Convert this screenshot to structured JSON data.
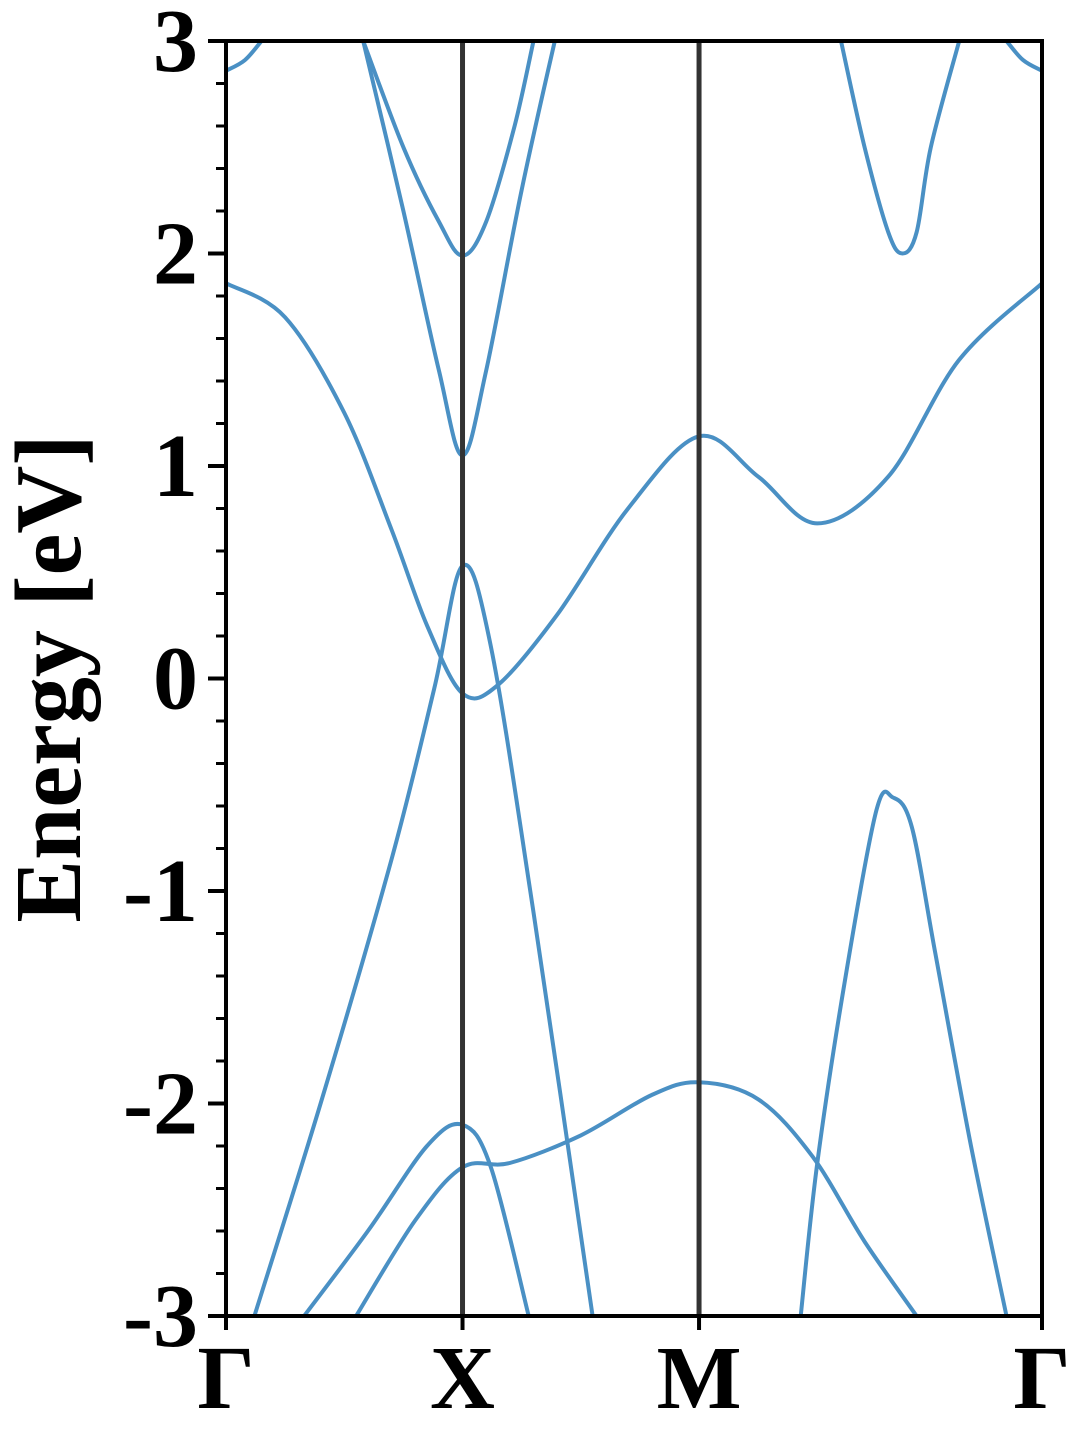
{
  "chart_data": {
    "type": "line",
    "title": "",
    "xlabel": "",
    "ylabel": "Energy [eV]",
    "ylim": [
      -3,
      3
    ],
    "xlim": [
      0,
      3.45
    ],
    "high_symmetry_points": [
      {
        "label": "Γ",
        "k": 0
      },
      {
        "label": "X",
        "k": 1
      },
      {
        "label": "M",
        "k": 2
      },
      {
        "label": "Γ",
        "k": 3.45
      }
    ],
    "y_ticks": [
      {
        "value": 3,
        "label": "3"
      },
      {
        "value": 2,
        "label": "2"
      },
      {
        "value": 1,
        "label": "1"
      },
      {
        "value": 0,
        "label": "0"
      },
      {
        "value": -1,
        "label": "-1"
      },
      {
        "value": -2,
        "label": "-2"
      },
      {
        "value": -3,
        "label": "-3"
      }
    ],
    "y_minor_step": 0.2,
    "grid": false,
    "line_color": "#4a90c4",
    "vline_color": "#333333",
    "series": [
      {
        "x": [
          0,
          0.08,
          0.15
        ],
        "y": [
          2.86,
          2.91,
          3.0
        ]
      },
      {
        "x": [
          0.58,
          0.75,
          0.9,
          1.0,
          1.1,
          1.22,
          1.3
        ],
        "y": [
          3.0,
          2.5,
          2.15,
          1.99,
          2.15,
          2.6,
          3.0
        ]
      },
      {
        "x": [
          0.58,
          0.75,
          0.9,
          1.0,
          1.1,
          1.25,
          1.39
        ],
        "y": [
          3.0,
          2.2,
          1.45,
          1.05,
          1.45,
          2.3,
          3.0
        ]
      },
      {
        "x": [
          0,
          0.25,
          0.5,
          0.7,
          0.85,
          1.0,
          1.15,
          1.4,
          1.7,
          2.0,
          2.25,
          2.5,
          2.8,
          3.1,
          3.45
        ],
        "y": [
          1.86,
          1.7,
          1.25,
          0.7,
          0.25,
          -0.07,
          -0.03,
          0.3,
          0.8,
          1.14,
          0.95,
          0.73,
          0.95,
          1.5,
          1.86
        ]
      },
      {
        "x": [
          0.12,
          0.4,
          0.7,
          0.88,
          1.0,
          1.12,
          1.3,
          1.55
        ],
        "y": [
          -3.0,
          -2.0,
          -0.85,
          -0.05,
          0.53,
          0.15,
          -1.1,
          -3.0
        ]
      },
      {
        "x": [
          0.33,
          0.6,
          0.85,
          1.0,
          1.12,
          1.28
        ],
        "y": [
          -3.0,
          -2.6,
          -2.2,
          -2.1,
          -2.3,
          -3.0
        ]
      },
      {
        "x": [
          0.55,
          0.8,
          1.0,
          1.2,
          1.5,
          1.8,
          2.0,
          2.25,
          2.48,
          2.7,
          2.92
        ],
        "y": [
          -3.0,
          -2.55,
          -2.3,
          -2.28,
          -2.15,
          -1.96,
          -1.9,
          -1.98,
          -2.25,
          -2.65,
          -3.0
        ]
      },
      {
        "x": [
          2.43,
          2.5,
          2.62,
          2.75,
          2.82,
          2.9,
          3.0,
          3.15,
          3.3
        ],
        "y": [
          -3.0,
          -2.28,
          -1.4,
          -0.62,
          -0.56,
          -0.7,
          -1.3,
          -2.2,
          -3.0
        ]
      },
      {
        "x": [
          2.6,
          2.7,
          2.8,
          2.86,
          2.92,
          2.98,
          3.1
        ],
        "y": [
          3.0,
          2.5,
          2.1,
          2.0,
          2.1,
          2.5,
          3.0
        ]
      },
      {
        "x": [
          3.3,
          3.37,
          3.45
        ],
        "y": [
          3.0,
          2.91,
          2.86
        ]
      }
    ]
  }
}
